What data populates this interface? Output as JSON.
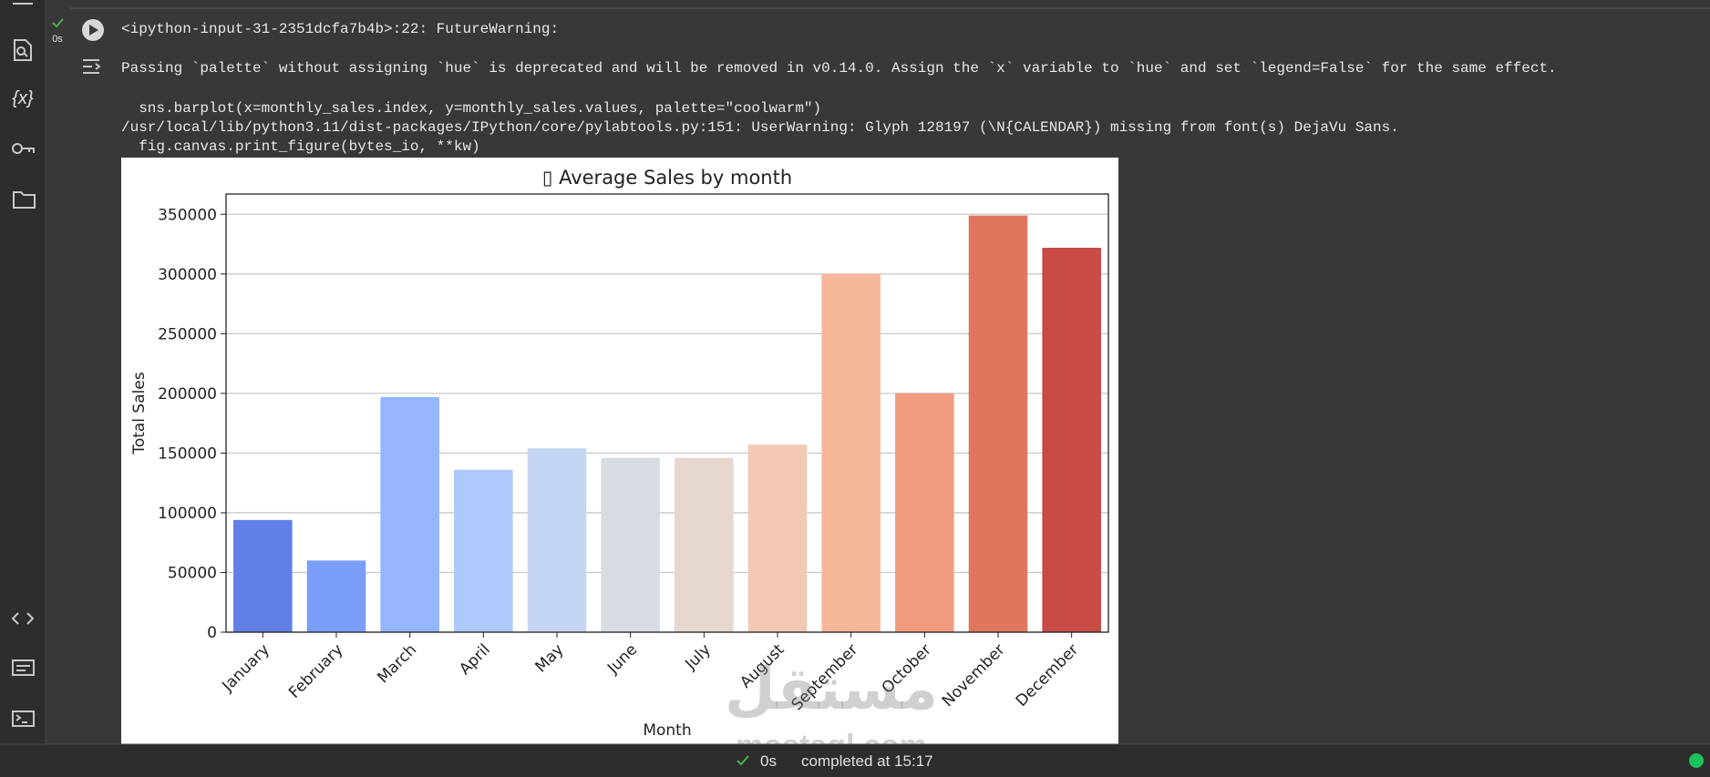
{
  "cell": {
    "exec_time": "0s",
    "output_lines": [
      "<ipython-input-31-2351dcfa7b4b>:22: FutureWarning:",
      "Passing `palette` without assigning `hue` is deprecated and will be removed in v0.14.0. Assign the `x` variable to `hue` and set `legend=False` for the same effect.",
      "  sns.barplot(x=monthly_sales.index, y=monthly_sales.values, palette=\"coolwarm\")",
      "/usr/local/lib/python3.11/dist-packages/IPython/core/pylabtools.py:151: UserWarning: Glyph 128197 (\\N{CALENDAR}) missing from font(s) DejaVu Sans.",
      "  fig.canvas.print_figure(bytes_io, **kw)"
    ]
  },
  "sidebar": {
    "variables_icon": "{x}"
  },
  "status_bar": {
    "exec_time": "0s",
    "status": "completed at 15:17"
  },
  "watermark": {
    "arabic": "مستقل",
    "latin": "mostaql.com"
  },
  "chart_data": {
    "type": "bar",
    "title": "▯ Average Sales by month",
    "xlabel": "Month",
    "ylabel": "Total Sales",
    "categories": [
      "January",
      "February",
      "March",
      "April",
      "May",
      "June",
      "July",
      "August",
      "September",
      "October",
      "November",
      "December"
    ],
    "values": [
      94000,
      60000,
      197000,
      136000,
      154000,
      146000,
      146000,
      157000,
      300000,
      200000,
      349000,
      322000
    ],
    "colors": [
      "#6180e6",
      "#7b9ff9",
      "#94b6ff",
      "#aec9fc",
      "#c5d6f2",
      "#d7dce3",
      "#e6d7cf",
      "#f2c9b4",
      "#f6b69a",
      "#f19c7f",
      "#e0765d",
      "#c84b45"
    ],
    "ylim": [
      0,
      367000
    ],
    "yticks": [
      0,
      50000,
      100000,
      150000,
      200000,
      250000,
      300000,
      350000
    ],
    "grid": true
  }
}
